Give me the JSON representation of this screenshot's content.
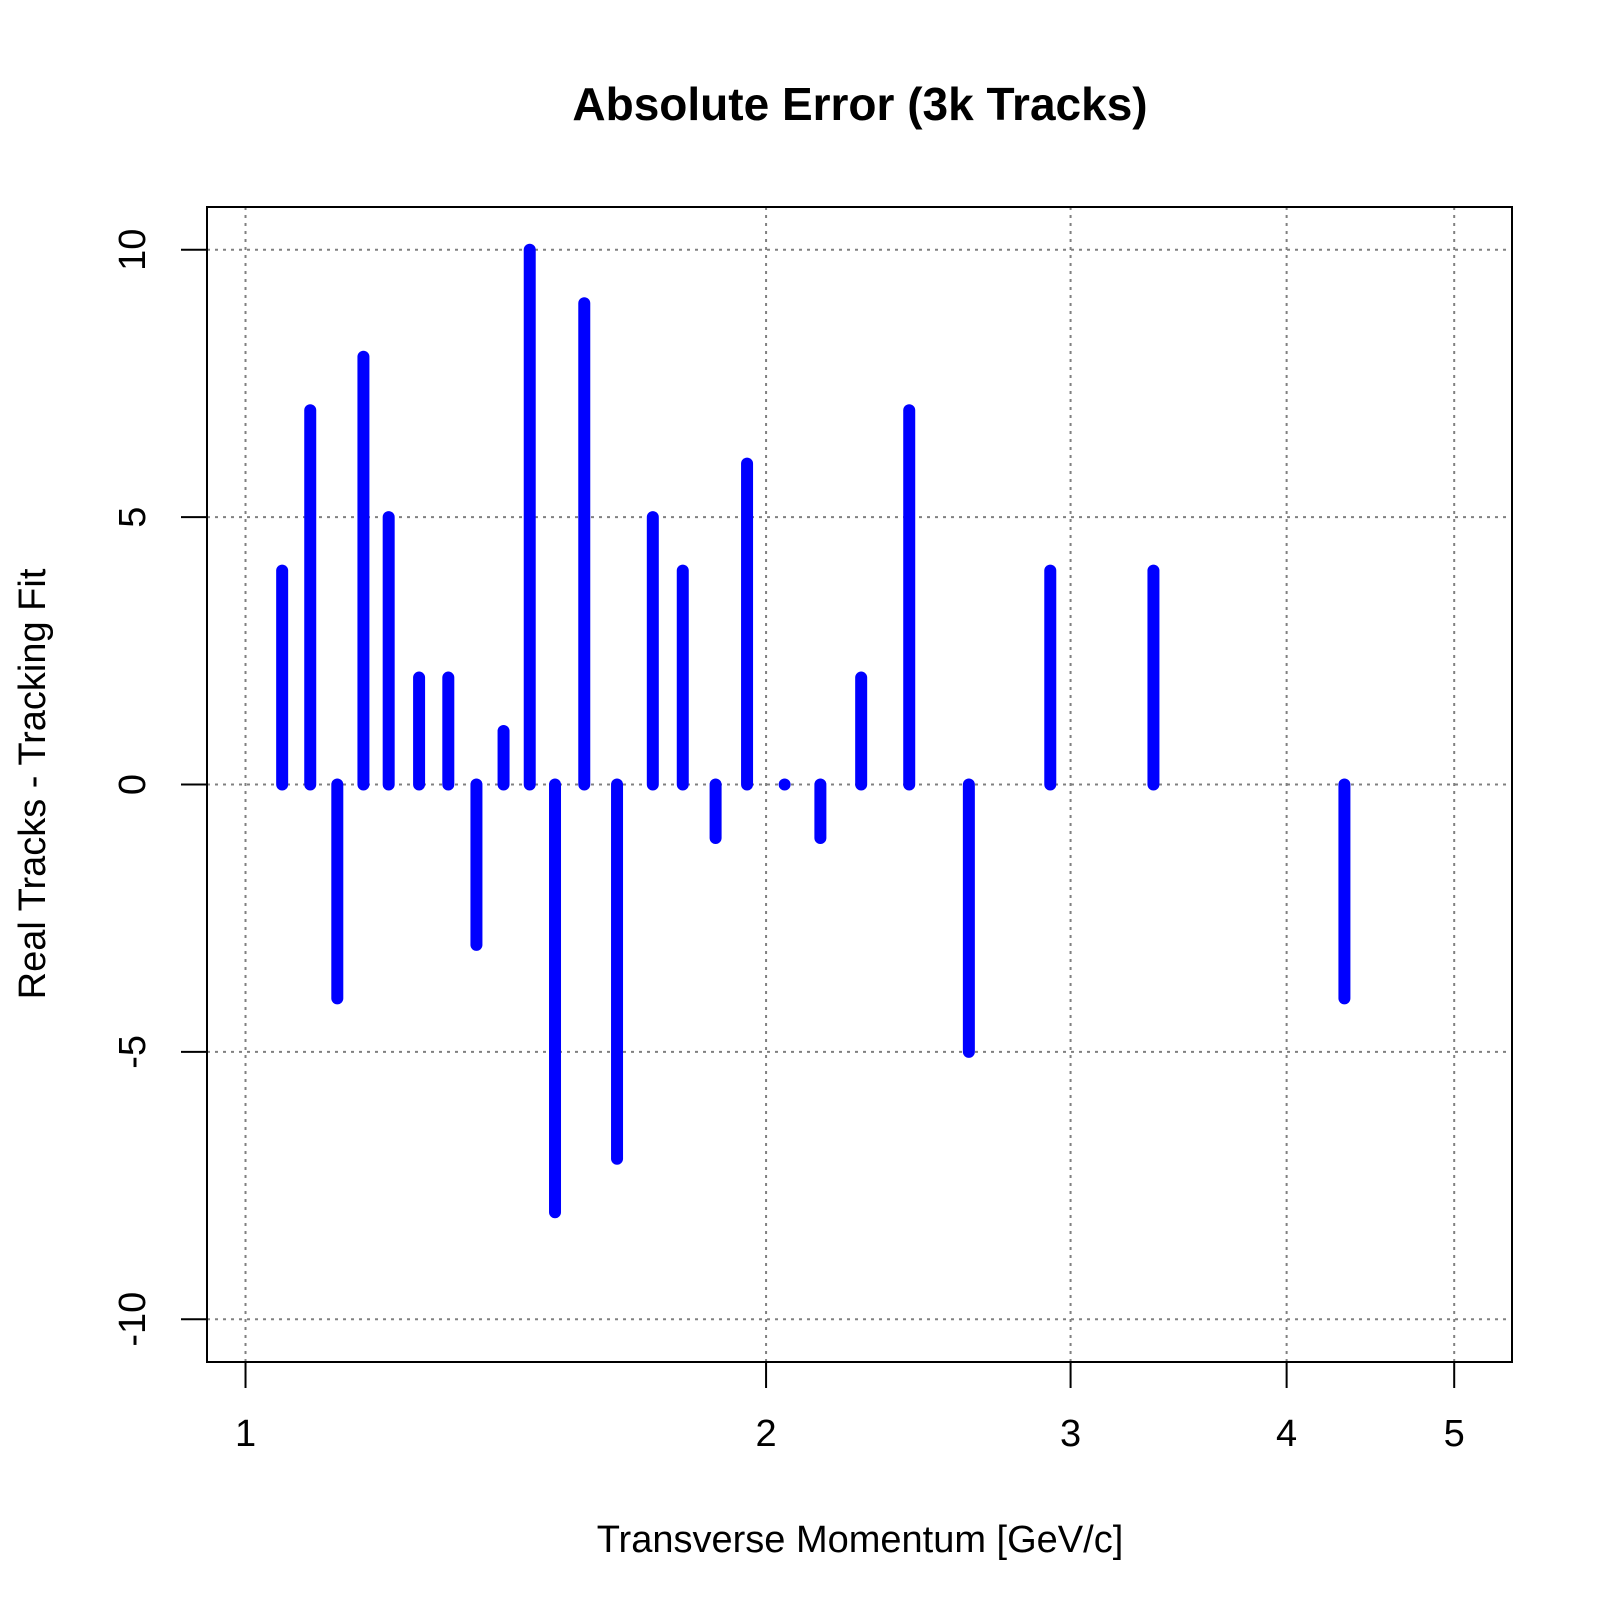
{
  "chart_data": {
    "type": "bar",
    "title": "Absolute Error (3k Tracks)",
    "xlabel": "Transverse Momentum [GeV/c]",
    "ylabel": "Real Tracks - Tracking Fit",
    "x_scale": "log",
    "xlim": [
      0.95,
      5.4
    ],
    "ylim": [
      -10.8,
      10.8
    ],
    "xticks": [
      1,
      2,
      3,
      4,
      5
    ],
    "xtick_labels": [
      "1",
      "2",
      "3",
      "4",
      "5"
    ],
    "yticks": [
      -10,
      -5,
      0,
      5,
      10
    ],
    "ytick_labels": [
      "-10",
      "-5",
      "0",
      "5",
      "10"
    ],
    "grid": true,
    "series": [
      {
        "color": "#0000ff",
        "points": [
          {
            "x": 1.05,
            "y": 4
          },
          {
            "x": 1.09,
            "y": 7
          },
          {
            "x": 1.13,
            "y": -4
          },
          {
            "x": 1.17,
            "y": 8
          },
          {
            "x": 1.21,
            "y": 5
          },
          {
            "x": 1.26,
            "y": 2
          },
          {
            "x": 1.31,
            "y": 2
          },
          {
            "x": 1.36,
            "y": -3
          },
          {
            "x": 1.41,
            "y": 1
          },
          {
            "x": 1.46,
            "y": 10
          },
          {
            "x": 1.51,
            "y": -8
          },
          {
            "x": 1.57,
            "y": 9
          },
          {
            "x": 1.64,
            "y": -7
          },
          {
            "x": 1.72,
            "y": 5
          },
          {
            "x": 1.79,
            "y": 4
          },
          {
            "x": 1.87,
            "y": -1
          },
          {
            "x": 1.95,
            "y": 6
          },
          {
            "x": 2.05,
            "y": 0
          },
          {
            "x": 2.15,
            "y": -1
          },
          {
            "x": 2.27,
            "y": 2
          },
          {
            "x": 2.42,
            "y": 7
          },
          {
            "x": 2.62,
            "y": -5
          },
          {
            "x": 2.92,
            "y": 4
          },
          {
            "x": 3.35,
            "y": 4
          },
          {
            "x": 4.32,
            "y": -4
          }
        ]
      }
    ]
  }
}
